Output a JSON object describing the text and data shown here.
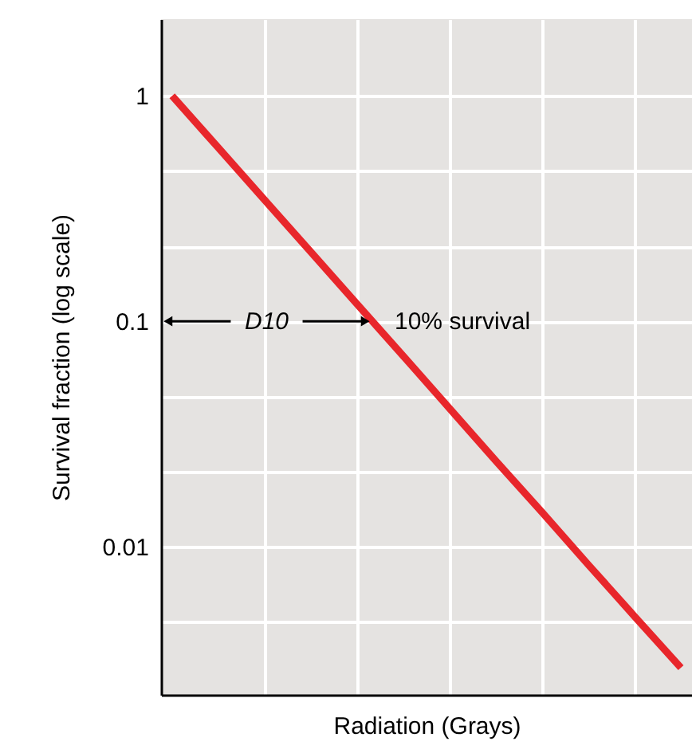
{
  "chart_data": {
    "type": "line",
    "xlabel": "Radiation (Grays)",
    "ylabel": "Survival fraction (log scale)",
    "categories": [
      null,
      null,
      null,
      null,
      null,
      null,
      null,
      null,
      null,
      null,
      null,
      null
    ],
    "series": [
      {
        "color": "#e8262b",
        "values": [
          1,
          0.588,
          0.345,
          0.203,
          0.119,
          0.07,
          0.041,
          0.024,
          0.0142,
          0.0083,
          0.0049,
          0.0029
        ]
      }
    ],
    "ylim": [
      0.0022,
      2.19
    ],
    "log": "y",
    "yticks": [
      {
        "value": 0.00464,
        "label": null
      },
      0.01,
      {
        "value": 0.0215,
        "label": null
      },
      {
        "value": 0.0464,
        "label": null
      },
      0.1,
      {
        "value": 0.215,
        "label": null
      },
      {
        "value": 0.464,
        "label": null
      },
      1
    ],
    "tick_labels": "y",
    "grid": true,
    "marker": "none",
    "line_style": "solid",
    "annotations": [
      "D10",
      "10% survival"
    ]
  }
}
